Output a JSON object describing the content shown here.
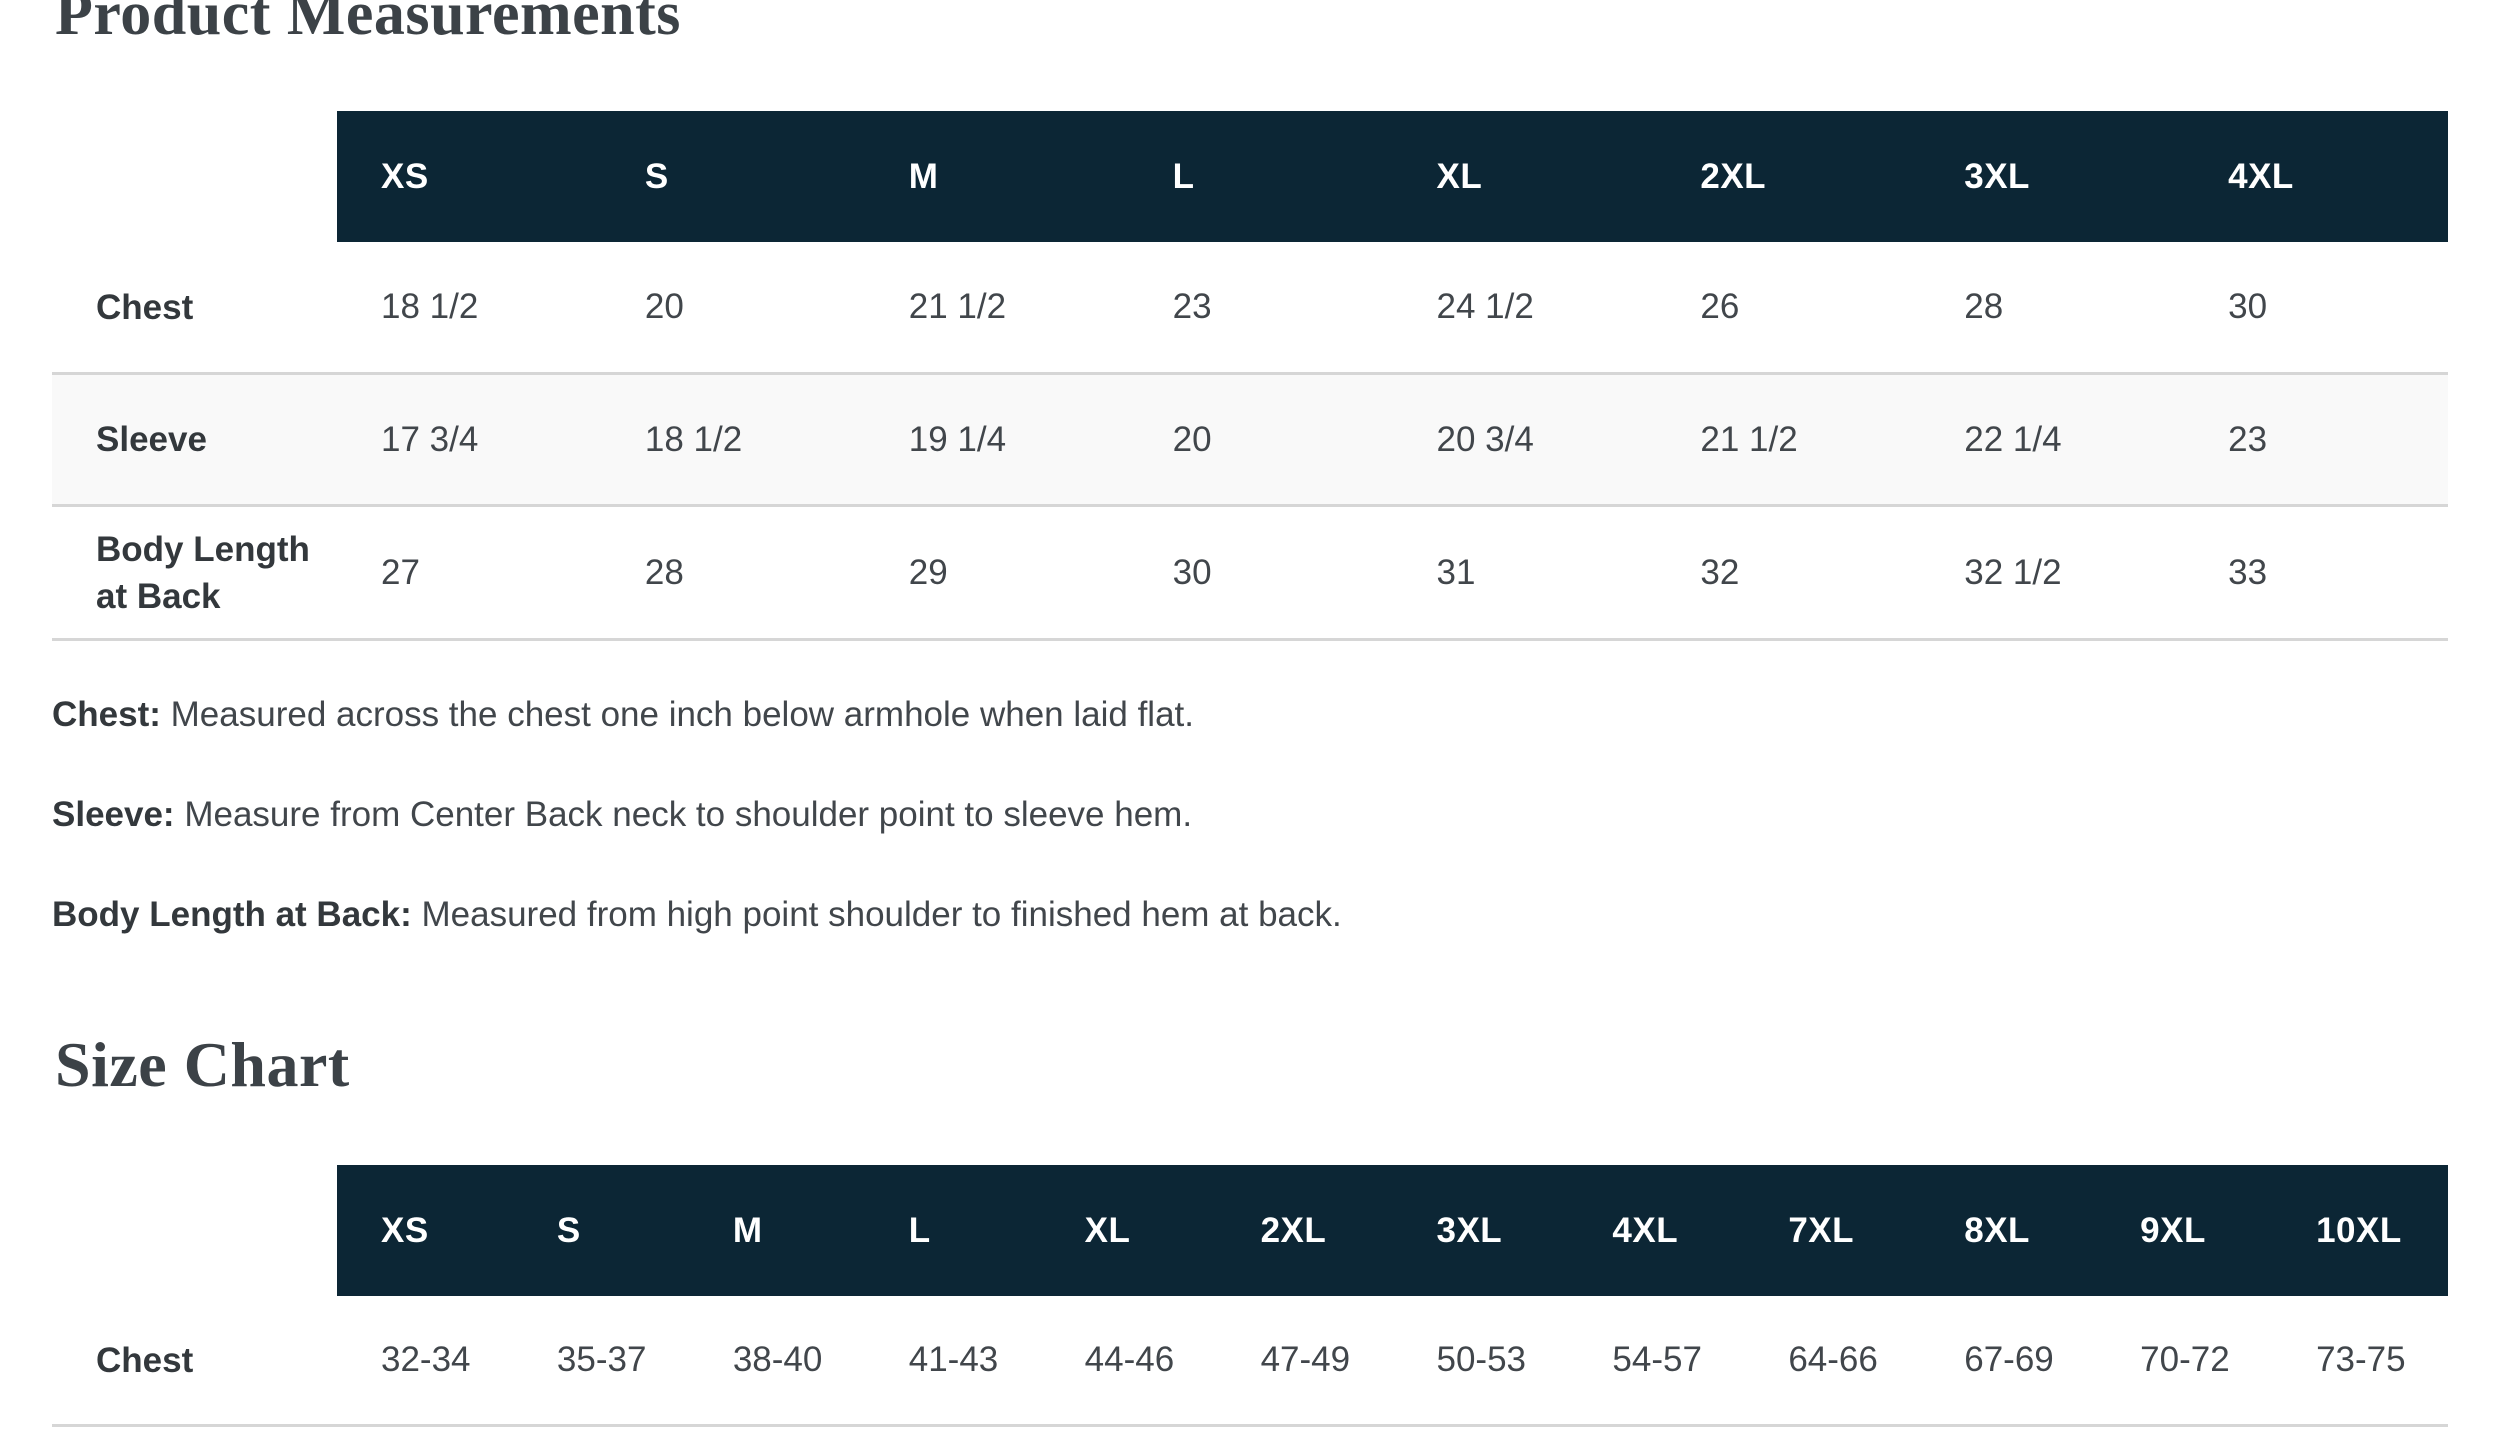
{
  "headings": {
    "product_measurements": "Product Measurements",
    "size_chart": "Size Chart"
  },
  "measurements_table": {
    "columns": [
      "XS",
      "S",
      "M",
      "L",
      "XL",
      "2XL",
      "3XL",
      "4XL"
    ],
    "rows": [
      {
        "label": "Chest",
        "values": [
          "18 1/2",
          "20",
          "21 1/2",
          "23",
          "24 1/2",
          "26",
          "28",
          "30"
        ]
      },
      {
        "label": "Sleeve",
        "values": [
          "17 3/4",
          "18 1/2",
          "19 1/4",
          "20",
          "20 3/4",
          "21 1/2",
          "22 1/4",
          "23"
        ]
      },
      {
        "label": "Body Length at Back",
        "values": [
          "27",
          "28",
          "29",
          "30",
          "31",
          "32",
          "32 1/2",
          "33"
        ]
      }
    ]
  },
  "definitions": [
    {
      "term": "Chest:",
      "text": "Measured across the chest one inch below armhole when laid flat."
    },
    {
      "term": "Sleeve:",
      "text": "Measure from Center Back neck to shoulder point to sleeve hem."
    },
    {
      "term": "Body Length at Back:",
      "text": "Measured from high point shoulder to finished hem at back."
    }
  ],
  "size_chart_table": {
    "columns": [
      "XS",
      "S",
      "M",
      "L",
      "XL",
      "2XL",
      "3XL",
      "4XL",
      "7XL",
      "8XL",
      "9XL",
      "10XL"
    ],
    "rows": [
      {
        "label": "Chest",
        "values": [
          "32-34",
          "35-37",
          "38-40",
          "41-43",
          "44-46",
          "47-49",
          "50-53",
          "54-57",
          "64-66",
          "67-69",
          "70-72",
          "73-75"
        ]
      }
    ]
  },
  "colors": {
    "header_bg": "#0c2635",
    "header_text": "#ffffff",
    "shaded_row_bg": "#f9f9f9",
    "divider": "#d6d6d6",
    "heading_text": "#3c4247",
    "body_text": "#41464b",
    "label_text": "#33383c"
  }
}
